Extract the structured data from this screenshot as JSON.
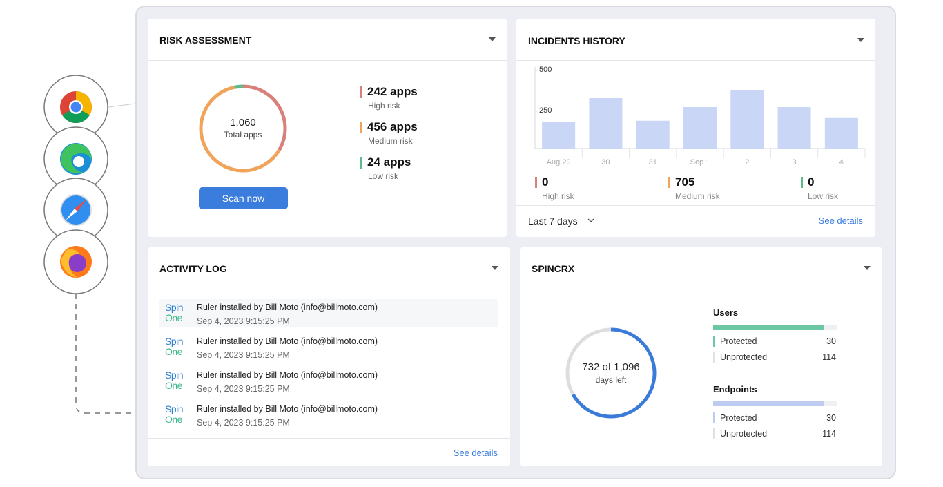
{
  "risk_assessment": {
    "title": "RISK ASSESSMENT",
    "total": "1,060",
    "total_label": "Total apps",
    "action": "Scan now",
    "groups": [
      {
        "count": 242,
        "label": "242 apps",
        "risk": "High risk",
        "color": "#d9807a"
      },
      {
        "count": 456,
        "label": "456 apps",
        "risk": "Medium risk",
        "color": "#f0a45a"
      },
      {
        "count": 24,
        "label": "24 apps",
        "risk": "Low risk",
        "color": "#5dbb8a"
      }
    ]
  },
  "incidents_history": {
    "title": "INCIDENTS HISTORY",
    "chart": {
      "type": "bar",
      "categories": [
        "Aug 29",
        "30",
        "31",
        "Sep 1",
        "2",
        "3",
        "4"
      ],
      "values": [
        182,
        330,
        191,
        275,
        381,
        275,
        208
      ],
      "color": "#c9d6f5",
      "ylim": [
        20,
        500
      ],
      "yticks": [
        250,
        500
      ]
    },
    "stats": [
      {
        "value": 0,
        "label": "High risk",
        "color": "#d9807a"
      },
      {
        "value": 705,
        "label": "Medium risk",
        "color": "#f0a45a"
      },
      {
        "value": 0,
        "label": "Low risk",
        "color": "#5dbb8a"
      }
    ],
    "period": "Last 7 days",
    "link": "See details"
  },
  "activity_log": {
    "title": "ACTIVITY LOG",
    "logo": [
      "Spin",
      "One"
    ],
    "entries": [
      {
        "text": "Ruler installed by Bill Moto (info@billmoto.com)",
        "time": "Sep 4, 2023 9:15:25 PM"
      },
      {
        "text": "Ruler installed by Bill Moto (info@billmoto.com)",
        "time": "Sep 4, 2023 9:15:25 PM"
      },
      {
        "text": "Ruler installed by Bill Moto (info@billmoto.com)",
        "time": "Sep 4, 2023 9:15:25 PM"
      },
      {
        "text": "Ruler installed by Bill Moto (info@billmoto.com)",
        "time": "Sep 4, 2023 9:15:25 PM"
      }
    ],
    "link": "See details"
  },
  "spincrx": {
    "title": "SPINCRX",
    "used": 732,
    "total": 1096,
    "label": "732 of 1,096",
    "sublabel": "days left",
    "groups": [
      {
        "name": "Users",
        "color": "#6cc7a3",
        "rows": [
          {
            "label": "Protected",
            "value": 30
          },
          {
            "label": "Unprotected",
            "value": 114
          }
        ]
      },
      {
        "name": "Endpoints",
        "color": "#bccbef",
        "rows": [
          {
            "label": "Protected",
            "value": 30
          },
          {
            "label": "Unprotected",
            "value": 114
          }
        ]
      }
    ]
  }
}
